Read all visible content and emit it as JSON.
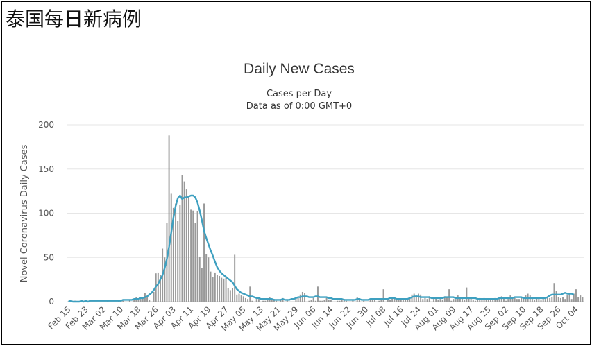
{
  "page": {
    "title": "泰国每日新病例"
  },
  "chart_data": {
    "type": "bar",
    "title": "Daily New Cases",
    "subtitle": [
      "Cases per Day",
      "Data as of 0:00 GMT+0"
    ],
    "ylabel": "Novel Coronavirus Daily Cases",
    "xlabel": "",
    "ylim": [
      0,
      200
    ],
    "yticks": [
      0,
      50,
      100,
      150,
      200
    ],
    "grid": true,
    "legend": "none",
    "colors": {
      "bars": "#999999",
      "moving_average": "#3ea0c0",
      "grid": "#e6e6e6"
    },
    "x_tick_labels": [
      "Feb 15",
      "Feb 23",
      "Mar 02",
      "Mar 10",
      "Mar 18",
      "Mar 26",
      "Apr 03",
      "Apr 11",
      "Apr 19",
      "Apr 27",
      "May 05",
      "May 13",
      "May 21",
      "May 29",
      "Jun 06",
      "Jun 14",
      "Jun 22",
      "Jun 30",
      "Jul 08",
      "Jul 16",
      "Jul 24",
      "Aug 01",
      "Aug 09",
      "Aug 17",
      "Aug 25",
      "Sep 02",
      "Sep 10",
      "Sep 18",
      "Sep 26",
      "Oct 04"
    ],
    "start_date": "Feb 15",
    "series": [
      {
        "type": "bar",
        "values": [
          0,
          0,
          0,
          1,
          0,
          0,
          0,
          0,
          1,
          0,
          0,
          0,
          0,
          0,
          0,
          0,
          0,
          0,
          1,
          0,
          0,
          0,
          0,
          1,
          2,
          1,
          0,
          0,
          2,
          0,
          2,
          5,
          2,
          3,
          5,
          10,
          6,
          2,
          0,
          11,
          32,
          33,
          30,
          60,
          50,
          89,
          188,
          122,
          106,
          111,
          91,
          109,
          143,
          136,
          127,
          120,
          104,
          103,
          89,
          102,
          51,
          38,
          111,
          54,
          50,
          34,
          28,
          33,
          30,
          29,
          27,
          26,
          28,
          15,
          13,
          15,
          53,
          8,
          9,
          7,
          6,
          4,
          3,
          17,
          1,
          0,
          3,
          3,
          0,
          1,
          1,
          2,
          5,
          3,
          3,
          1,
          0,
          2,
          4,
          0,
          2,
          0,
          0,
          0,
          3,
          4,
          8,
          11,
          10,
          0,
          1,
          2,
          4,
          1,
          17,
          1,
          1,
          2,
          4,
          2,
          2,
          0,
          0,
          1,
          1,
          3,
          3,
          1,
          0,
          0,
          2,
          0,
          5,
          2,
          0,
          1,
          0,
          0,
          3,
          3,
          3,
          0,
          1,
          3,
          14,
          0,
          2,
          2,
          4,
          5,
          3,
          2,
          3,
          2,
          3,
          3,
          4,
          8,
          9,
          7,
          9,
          8,
          3,
          4,
          3,
          6,
          0,
          3,
          5,
          2,
          3,
          2,
          6,
          5,
          14,
          1,
          3,
          3,
          7,
          4,
          3,
          2,
          16,
          4,
          4,
          2,
          1,
          4,
          4,
          2,
          4,
          2,
          2,
          3,
          3,
          4,
          2,
          3,
          6,
          4,
          1,
          3,
          7,
          5,
          4,
          3,
          3,
          4,
          4,
          7,
          9,
          7,
          3,
          2,
          4,
          3,
          2,
          4,
          3,
          6,
          4,
          5,
          21,
          12,
          5,
          4,
          5,
          3,
          7,
          9,
          3,
          9,
          14,
          5,
          7,
          5
        ]
      },
      {
        "type": "line",
        "name": "",
        "values": [
          0,
          1,
          0,
          0,
          0,
          0,
          1,
          0,
          1,
          0,
          1,
          1,
          1,
          1,
          1,
          1,
          1,
          1,
          1,
          1,
          1,
          1,
          1,
          1,
          1,
          2,
          2,
          2,
          2,
          2,
          3,
          3,
          3,
          4,
          4,
          5,
          6,
          8,
          10,
          13,
          17,
          20,
          25,
          30,
          38,
          48,
          62,
          78,
          95,
          108,
          117,
          120,
          116,
          118,
          118,
          119,
          120,
          120,
          118,
          112,
          103,
          92,
          80,
          72,
          65,
          58,
          52,
          45,
          39,
          35,
          32,
          30,
          28,
          26,
          24,
          22,
          18,
          14,
          12,
          10,
          9,
          8,
          7,
          6,
          6,
          5,
          4,
          4,
          3,
          3,
          3,
          3,
          3,
          3,
          2,
          2,
          2,
          2,
          3,
          2,
          2,
          2,
          3,
          3,
          4,
          5,
          5,
          6,
          6,
          6,
          5,
          5,
          5,
          6,
          6,
          5,
          5,
          5,
          5,
          4,
          4,
          3,
          3,
          3,
          3,
          3,
          2,
          2,
          2,
          2,
          2,
          2,
          3,
          3,
          2,
          2,
          2,
          2,
          3,
          3,
          3,
          3,
          3,
          3,
          3,
          3,
          3,
          4,
          4,
          4,
          3,
          3,
          3,
          3,
          3,
          3,
          4,
          5,
          6,
          6,
          6,
          5,
          5,
          5,
          5,
          5,
          4,
          4,
          4,
          4,
          4,
          4,
          5,
          5,
          5,
          5,
          5,
          4,
          4,
          4,
          4,
          4,
          4,
          4,
          4,
          4,
          4,
          3,
          3,
          3,
          3,
          3,
          3,
          3,
          3,
          3,
          3,
          4,
          4,
          4,
          4,
          4,
          4,
          4,
          5,
          5,
          5,
          5,
          4,
          4,
          4,
          4,
          4,
          4,
          4,
          4,
          4,
          4,
          4,
          5,
          7,
          8,
          8,
          8,
          8,
          8,
          9,
          10,
          9,
          9,
          9,
          8
        ]
      }
    ]
  }
}
